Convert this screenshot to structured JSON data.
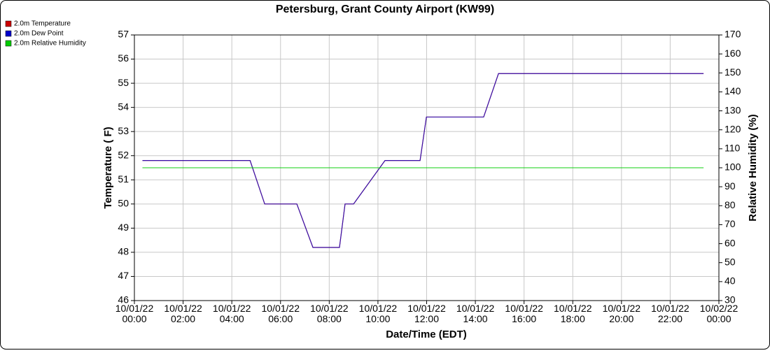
{
  "chart_data": {
    "type": "line",
    "title": "Petersburg, Grant County Airport (KW99)",
    "x_label": "Date/Time (EDT)",
    "y_label": "Temperature ( F)",
    "y2_label": "Relative Humidity (%)",
    "x": [
      0.33,
      4.75,
      5.35,
      6.67,
      7.33,
      8.42,
      8.65,
      9.0,
      10.29,
      11.73,
      11.99,
      14.34,
      14.95,
      23.37
    ],
    "series": [
      {
        "name": "2.0m Temperature",
        "color": "#cc0000",
        "values": [
          51.8,
          51.8,
          50.0,
          50.0,
          48.2,
          48.2,
          50.0,
          50.0,
          51.8,
          51.8,
          53.6,
          53.6,
          55.4,
          55.4
        ]
      },
      {
        "name": "2.0m Dew Point",
        "color": "#0000cc",
        "values": [
          51.8,
          51.8,
          50.0,
          50.0,
          48.2,
          48.2,
          50.0,
          50.0,
          51.8,
          51.8,
          53.6,
          53.6,
          55.4,
          55.4
        ]
      },
      {
        "name": "2.0m Relative Humidity",
        "color": "#00cc00",
        "axis": "y2",
        "values": [
          100,
          100,
          100,
          100,
          100,
          100,
          100,
          100,
          100,
          100,
          100,
          100,
          100,
          100
        ]
      }
    ],
    "xlim": [
      0,
      24
    ],
    "xticks": [
      {
        "value": 0,
        "label": "10/01/22 00:00"
      },
      {
        "value": 2,
        "label": "10/01/22 02:00"
      },
      {
        "value": 4,
        "label": "10/01/22 04:00"
      },
      {
        "value": 6,
        "label": "10/01/22 06:00"
      },
      {
        "value": 8,
        "label": "10/01/22 08:00"
      },
      {
        "value": 10,
        "label": "10/01/22 10:00"
      },
      {
        "value": 12,
        "label": "10/01/22 12:00"
      },
      {
        "value": 14,
        "label": "10/01/22 14:00"
      },
      {
        "value": 16,
        "label": "10/01/22 16:00"
      },
      {
        "value": 18,
        "label": "10/01/22 18:00"
      },
      {
        "value": 20,
        "label": "10/01/22 20:00"
      },
      {
        "value": 22,
        "label": "10/01/22 22:00"
      },
      {
        "value": 24,
        "label": "10/02/22 00:00"
      }
    ],
    "ylim": [
      46,
      57
    ],
    "yticks": [
      46,
      47,
      48,
      49,
      50,
      51,
      52,
      53,
      54,
      55,
      56,
      57
    ],
    "y2lim": [
      30,
      170
    ],
    "y2ticks": [
      30,
      40,
      50,
      60,
      70,
      80,
      90,
      100,
      110,
      120,
      130,
      140,
      150,
      160,
      170
    ],
    "grid": true,
    "legend": "top-left"
  }
}
